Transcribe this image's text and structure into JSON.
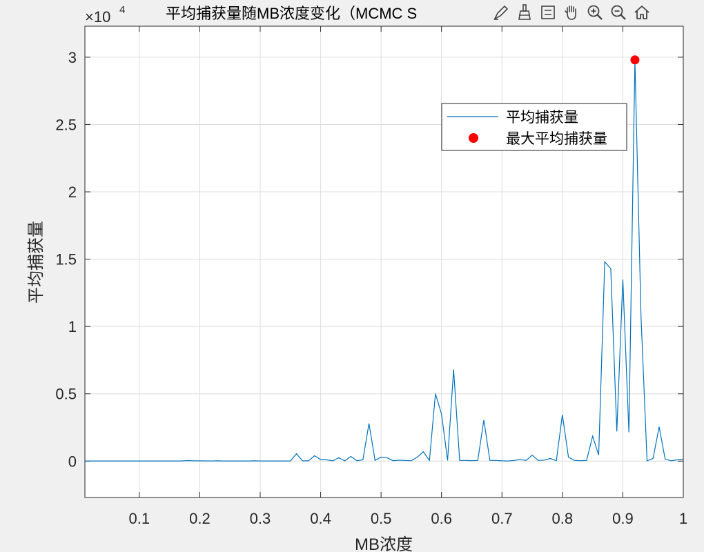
{
  "window": {
    "title": "平均捕获量随MB浓度变化（MCMC S"
  },
  "toolbar": {
    "buttons": [
      {
        "name": "edit-plot-icon"
      },
      {
        "name": "brush-icon"
      },
      {
        "name": "legend-toggle-icon"
      },
      {
        "name": "pan-hand-icon"
      },
      {
        "name": "zoom-in-icon"
      },
      {
        "name": "zoom-out-icon"
      },
      {
        "name": "home-icon"
      }
    ]
  },
  "chart_data": {
    "type": "line",
    "title": "平均捕获量随MB浓度变化（MCMC S",
    "xlabel": "MB浓度",
    "ylabel": "平均捕获量",
    "exponent_label": "×10",
    "exponent_power": "4",
    "xlim": [
      0.01,
      1.0
    ],
    "ylim": [
      -2700,
      32300
    ],
    "x_ticks": [
      0.1,
      0.2,
      0.3,
      0.4,
      0.5,
      0.6,
      0.7,
      0.8,
      0.9,
      1
    ],
    "x_tick_labels": [
      "0.1",
      "0.2",
      "0.3",
      "0.4",
      "0.5",
      "0.6",
      "0.7",
      "0.8",
      "0.9",
      "1"
    ],
    "y_ticks": [
      0,
      5000,
      10000,
      15000,
      20000,
      25000,
      30000
    ],
    "y_tick_labels": [
      "0",
      "0.5",
      "1",
      "1.5",
      "2",
      "2.5",
      "3"
    ],
    "grid": true,
    "legend_position": "top-right",
    "colors": {
      "line": "#0072bd",
      "max_marker": "#ff0000",
      "grid": "#dcdcdc",
      "axes": "#262626"
    },
    "legend": [
      "平均捕获量",
      "最大平均捕获量"
    ],
    "series": [
      {
        "name": "平均捕获量",
        "x": [
          0.01,
          0.02,
          0.03,
          0.04,
          0.05,
          0.06,
          0.07,
          0.08,
          0.09,
          0.1,
          0.11,
          0.12,
          0.13,
          0.14,
          0.15,
          0.16,
          0.17,
          0.18,
          0.19,
          0.2,
          0.21,
          0.22,
          0.23,
          0.24,
          0.25,
          0.26,
          0.27,
          0.28,
          0.29,
          0.3,
          0.31,
          0.32,
          0.33,
          0.34,
          0.35,
          0.36,
          0.37,
          0.38,
          0.39,
          0.4,
          0.41,
          0.42,
          0.43,
          0.44,
          0.45,
          0.46,
          0.47,
          0.48,
          0.49,
          0.5,
          0.51,
          0.52,
          0.53,
          0.54,
          0.55,
          0.56,
          0.57,
          0.58,
          0.59,
          0.6,
          0.61,
          0.62,
          0.63,
          0.64,
          0.65,
          0.66,
          0.67,
          0.68,
          0.69,
          0.7,
          0.71,
          0.72,
          0.73,
          0.74,
          0.75,
          0.76,
          0.77,
          0.78,
          0.79,
          0.8,
          0.81,
          0.82,
          0.83,
          0.84,
          0.85,
          0.86,
          0.87,
          0.88,
          0.89,
          0.9,
          0.91,
          0.92,
          0.93,
          0.94,
          0.95,
          0.96,
          0.97,
          0.98,
          0.99,
          1.0
        ],
        "y": [
          10,
          10,
          10,
          10,
          10,
          10,
          10,
          10,
          10,
          10,
          10,
          10,
          10,
          10,
          10,
          10,
          10,
          40,
          20,
          20,
          15,
          10,
          20,
          10,
          10,
          10,
          10,
          10,
          20,
          10,
          10,
          10,
          10,
          10,
          10,
          550,
          20,
          20,
          400,
          120,
          100,
          20,
          250,
          20,
          350,
          30,
          100,
          2800,
          50,
          300,
          250,
          30,
          70,
          50,
          30,
          300,
          700,
          50,
          5000,
          3500,
          50,
          6800,
          50,
          50,
          30,
          50,
          3050,
          50,
          50,
          20,
          10,
          50,
          120,
          50,
          450,
          50,
          80,
          200,
          30,
          3450,
          300,
          50,
          30,
          50,
          1850,
          450,
          14800,
          14300,
          2200,
          13500,
          2150,
          29800,
          10800,
          20,
          200,
          2550,
          150,
          20,
          100,
          150
        ]
      }
    ],
    "max_point": {
      "name": "最大平均捕获量",
      "x": 0.92,
      "y": 29800
    }
  }
}
